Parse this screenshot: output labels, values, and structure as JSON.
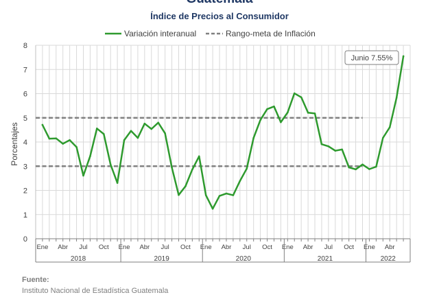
{
  "header": {
    "title": "Guatemala",
    "subtitle": "Índice de Precios al Consumidor"
  },
  "footer": {
    "source_label": "Fuente:",
    "source_text": "Instituto Nacional de Estadística Guatemala"
  },
  "colors": {
    "series_line": "#2e9a2e",
    "target_line": "#808080",
    "title": "#1f3864",
    "grid": "#d9d9d9",
    "axis_text": "#404040"
  },
  "chart_data": {
    "type": "line",
    "title": "Guatemala",
    "subtitle": "Índice de Precios al Consumidor",
    "ylabel": "Porcentajes",
    "xlabel": "",
    "ylim": [
      0,
      8
    ],
    "yticks": [
      "0",
      "1",
      "2",
      "3",
      "4",
      "5",
      "6",
      "7",
      "8"
    ],
    "grid": true,
    "legend_position": "top",
    "legend": [
      "Variación interanual",
      "Rango-meta de Inflación"
    ],
    "month_tick_labels": [
      "Ene",
      "Abr",
      "Jul",
      "Oct",
      "Ene",
      "Abr",
      "Jul",
      "Oct",
      "Ene",
      "Abr",
      "Jul",
      "Oct",
      "Ene",
      "Abr",
      "Jul",
      "Oct",
      "Ene",
      "Abr"
    ],
    "year_labels": [
      "2018",
      "2019",
      "2020",
      "2021",
      "2022"
    ],
    "x": [
      "2018-01",
      "2018-02",
      "2018-03",
      "2018-04",
      "2018-05",
      "2018-06",
      "2018-07",
      "2018-08",
      "2018-09",
      "2018-10",
      "2018-11",
      "2018-12",
      "2019-01",
      "2019-02",
      "2019-03",
      "2019-04",
      "2019-05",
      "2019-06",
      "2019-07",
      "2019-08",
      "2019-09",
      "2019-10",
      "2019-11",
      "2019-12",
      "2020-01",
      "2020-02",
      "2020-03",
      "2020-04",
      "2020-05",
      "2020-06",
      "2020-07",
      "2020-08",
      "2020-09",
      "2020-10",
      "2020-11",
      "2020-12",
      "2021-01",
      "2021-02",
      "2021-03",
      "2021-04",
      "2021-05",
      "2021-06",
      "2021-07",
      "2021-08",
      "2021-09",
      "2021-10",
      "2021-11",
      "2021-12",
      "2022-01",
      "2022-02",
      "2022-03",
      "2022-04",
      "2022-05",
      "2022-06"
    ],
    "series": [
      {
        "name": "Variación interanual",
        "values": [
          4.71,
          4.14,
          4.15,
          3.93,
          4.08,
          3.79,
          2.61,
          3.41,
          4.56,
          4.33,
          3.07,
          2.31,
          4.08,
          4.46,
          4.17,
          4.76,
          4.54,
          4.8,
          4.36,
          2.95,
          1.81,
          2.17,
          2.86,
          3.41,
          1.8,
          1.24,
          1.77,
          1.87,
          1.8,
          2.39,
          2.9,
          4.17,
          4.91,
          5.36,
          5.47,
          4.82,
          5.22,
          6.01,
          5.85,
          5.21,
          5.18,
          3.91,
          3.82,
          3.64,
          3.69,
          2.95,
          2.87,
          3.07,
          2.88,
          2.98,
          4.17,
          4.61,
          5.83,
          7.55
        ]
      },
      {
        "name": "Rango-meta de Inflación",
        "bounds": [
          3,
          5
        ]
      }
    ],
    "annotation": "Junio 7.55%"
  }
}
